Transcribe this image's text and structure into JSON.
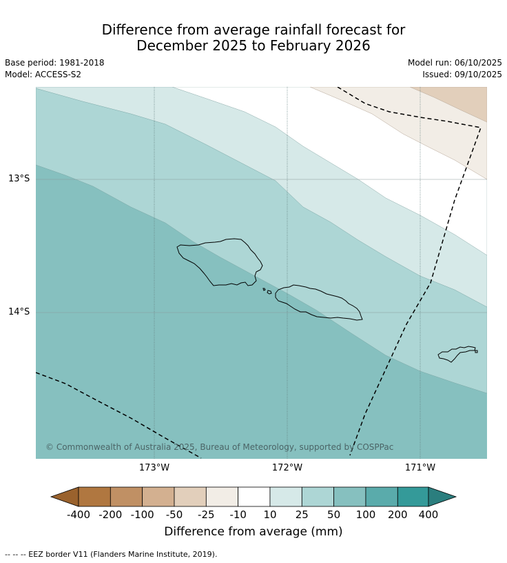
{
  "title": {
    "line1": "Difference from average rainfall forecast for",
    "line2": "December 2025 to February 2026"
  },
  "meta": {
    "base_period": "Base period: 1981-2018",
    "model": "Model: ACCESS-S2",
    "model_run": "Model run: 06/10/2025",
    "issued": "Issued: 09/10/2025"
  },
  "map": {
    "latitude_labels": [
      "13°S",
      "14°S"
    ],
    "longitude_labels": [
      "173°W",
      "172°W",
      "171°W"
    ],
    "copyright": "© Commonwealth of Australia 2025, Bureau of Meteorology, supported by COSPPac",
    "regions": [
      "Samoa (Savai'i)",
      "Samoa (Upolu)",
      "American Samoa (Tutuila)"
    ]
  },
  "legend": {
    "title": "Difference from average (mm)",
    "ticks": [
      "-400",
      "-200",
      "-100",
      "-50",
      "-25",
      "-10",
      "10",
      "25",
      "50",
      "100",
      "200",
      "400"
    ],
    "colors": [
      "#9a622d",
      "#b07740",
      "#c09064",
      "#d3b090",
      "#e2cfbb",
      "#f2ede6",
      "#ffffff",
      "#d6e9e8",
      "#add6d5",
      "#86c0bf",
      "#5aabab",
      "#349a99",
      "#2b7e7e"
    ]
  },
  "footnote": "--  --  -- EEZ border V11 (Flanders Marine Institute, 2019)."
}
